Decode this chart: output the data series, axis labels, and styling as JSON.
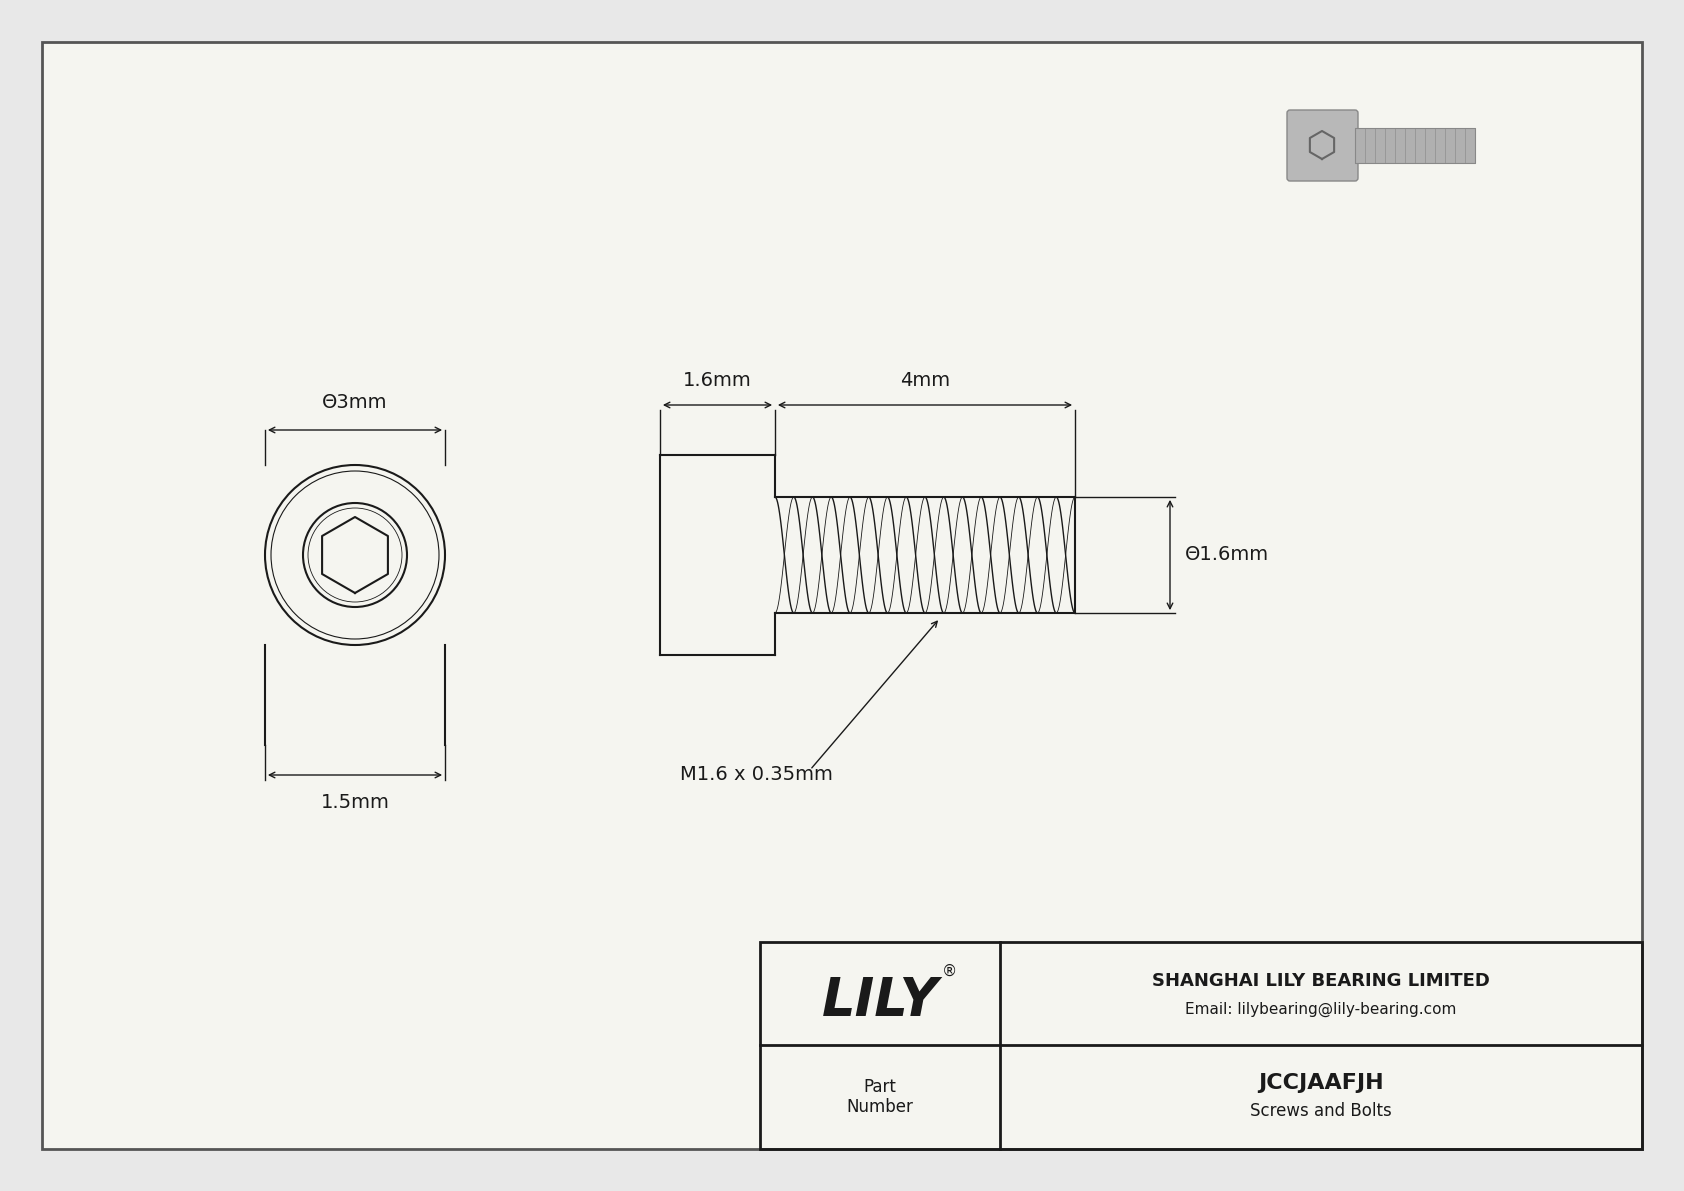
{
  "bg_color": "#e8e8e8",
  "drawing_bg": "#f5f5f0",
  "line_color": "#1a1a1a",
  "title_company": "SHANGHAI LILY BEARING LIMITED",
  "title_email": "Email: lilybearing@lily-bearing.com",
  "part_number": "JCCJAAFJH",
  "part_category": "Screws and Bolts",
  "part_label": "Part\nNumber",
  "logo_text": "LILY",
  "dim_head_diameter": "Θ3mm",
  "dim_head_length": "1.6mm",
  "dim_shaft_length": "4mm",
  "dim_shaft_diameter": "Θ1.6mm",
  "dim_head_height": "1.5mm",
  "thread_label": "M1.6 x 0.35mm",
  "border_color": "#555555"
}
